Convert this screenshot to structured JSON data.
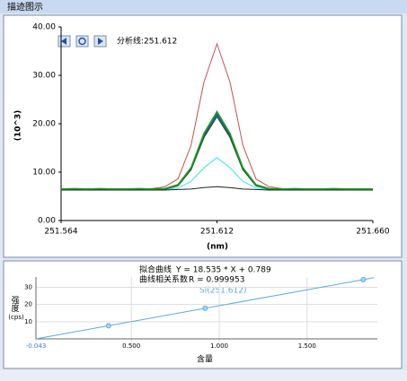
{
  "window": {
    "title": "描迹图示"
  },
  "chart_data": [
    {
      "type": "line",
      "toolbar_label": "分析线:251.612",
      "xlabel": "(nm)",
      "ylabel": "(10^3)",
      "x": [
        251.564,
        251.568,
        251.572,
        251.576,
        251.58,
        251.584,
        251.588,
        251.592,
        251.596,
        251.6,
        251.604,
        251.608,
        251.612,
        251.616,
        251.62,
        251.624,
        251.628,
        251.632,
        251.636,
        251.64,
        251.644,
        251.648,
        251.652,
        251.656,
        251.66
      ],
      "series": [
        {
          "color": "#c85050",
          "values": [
            6.5,
            6.5,
            6.5,
            6.5,
            6.5,
            6.5,
            6.5,
            6.6,
            7.0,
            8.6,
            15.5,
            28.6,
            36.5,
            28.6,
            15.5,
            8.6,
            7.0,
            6.6,
            6.5,
            6.5,
            6.5,
            6.5,
            6.5,
            6.5,
            6.5
          ]
        },
        {
          "color": "#40e0f0",
          "values": [
            6.3,
            6.3,
            6.3,
            6.3,
            6.3,
            6.3,
            6.3,
            6.3,
            6.4,
            6.7,
            8.1,
            10.9,
            13.0,
            10.9,
            8.1,
            6.7,
            6.4,
            6.3,
            6.3,
            6.3,
            6.3,
            6.3,
            6.3,
            6.3,
            6.3
          ]
        },
        {
          "color": "#202020",
          "values": [
            6.3,
            6.3,
            6.3,
            6.3,
            6.3,
            6.3,
            6.3,
            6.3,
            6.3,
            6.4,
            6.5,
            6.8,
            7.0,
            6.8,
            6.5,
            6.4,
            6.3,
            6.3,
            6.3,
            6.3,
            6.3,
            6.3,
            6.3,
            6.3,
            6.3
          ]
        },
        {
          "color": "#3050c0",
          "values": [
            6.5,
            6.5,
            6.5,
            6.5,
            6.5,
            6.5,
            6.5,
            6.5,
            6.6,
            7.3,
            10.7,
            17.6,
            22.0,
            17.6,
            10.7,
            7.3,
            6.6,
            6.5,
            6.5,
            6.5,
            6.5,
            6.5,
            6.5,
            6.5,
            6.5
          ]
        },
        {
          "color": "#205a40",
          "values": [
            6.5,
            6.5,
            6.5,
            6.5,
            6.5,
            6.5,
            6.5,
            6.5,
            6.5,
            7.2,
            10.5,
            17.2,
            21.5,
            17.2,
            10.5,
            7.2,
            6.5,
            6.5,
            6.5,
            6.5,
            6.5,
            6.5,
            6.5,
            6.5,
            6.5
          ]
        },
        {
          "color": "#18a018",
          "values": [
            6.5,
            6.6,
            6.5,
            6.6,
            6.5,
            6.5,
            6.6,
            6.5,
            6.6,
            7.4,
            10.9,
            18.0,
            22.5,
            18.0,
            10.9,
            7.4,
            6.6,
            6.5,
            6.6,
            6.5,
            6.5,
            6.6,
            6.5,
            6.5,
            6.5
          ]
        }
      ],
      "xlim": [
        251.564,
        251.66
      ],
      "xticks": [
        251.564,
        251.612,
        {
          "value": 251.66,
          "label": "251.660"
        }
      ],
      "ylim": [
        0,
        40
      ],
      "yticks": [
        {
          "value": 0,
          "label": "0.00"
        },
        {
          "value": 10,
          "label": "10.00"
        },
        {
          "value": 20,
          "label": "20.00"
        },
        {
          "value": 30,
          "label": "30.00"
        },
        {
          "value": 40,
          "label": "40.00"
        }
      ]
    },
    {
      "type": "scatter",
      "fit_label": "拟合曲线",
      "fit_equation": "Y = 18.535 * X + 0.789",
      "r_label": "曲线相关系数",
      "r_equation": "R = 0.999953",
      "point_label": "Si(251.612)",
      "xlabel": "含量",
      "ylabel": "强度",
      "ylabel_unit": "(cps)",
      "color": "#5aa9e6",
      "series": [
        {
          "x": [
            0.37,
            0.92,
            1.82
          ],
          "values": [
            7.6,
            17.8,
            34.5
          ]
        }
      ],
      "fit_line": {
        "x": [
          -0.043,
          1.88
        ],
        "values": [
          0,
          35.6
        ]
      },
      "xlim": [
        -0.043,
        1.9
      ],
      "xticks": [
        -0.043,
        {
          "value": 0.5,
          "label": "0.500"
        },
        {
          "value": 1,
          "label": "1.000"
        },
        {
          "value": 1.5,
          "label": "1.500"
        }
      ],
      "ylim": [
        0,
        36
      ],
      "yticks": [
        10,
        20,
        30
      ],
      "grid": true
    }
  ]
}
